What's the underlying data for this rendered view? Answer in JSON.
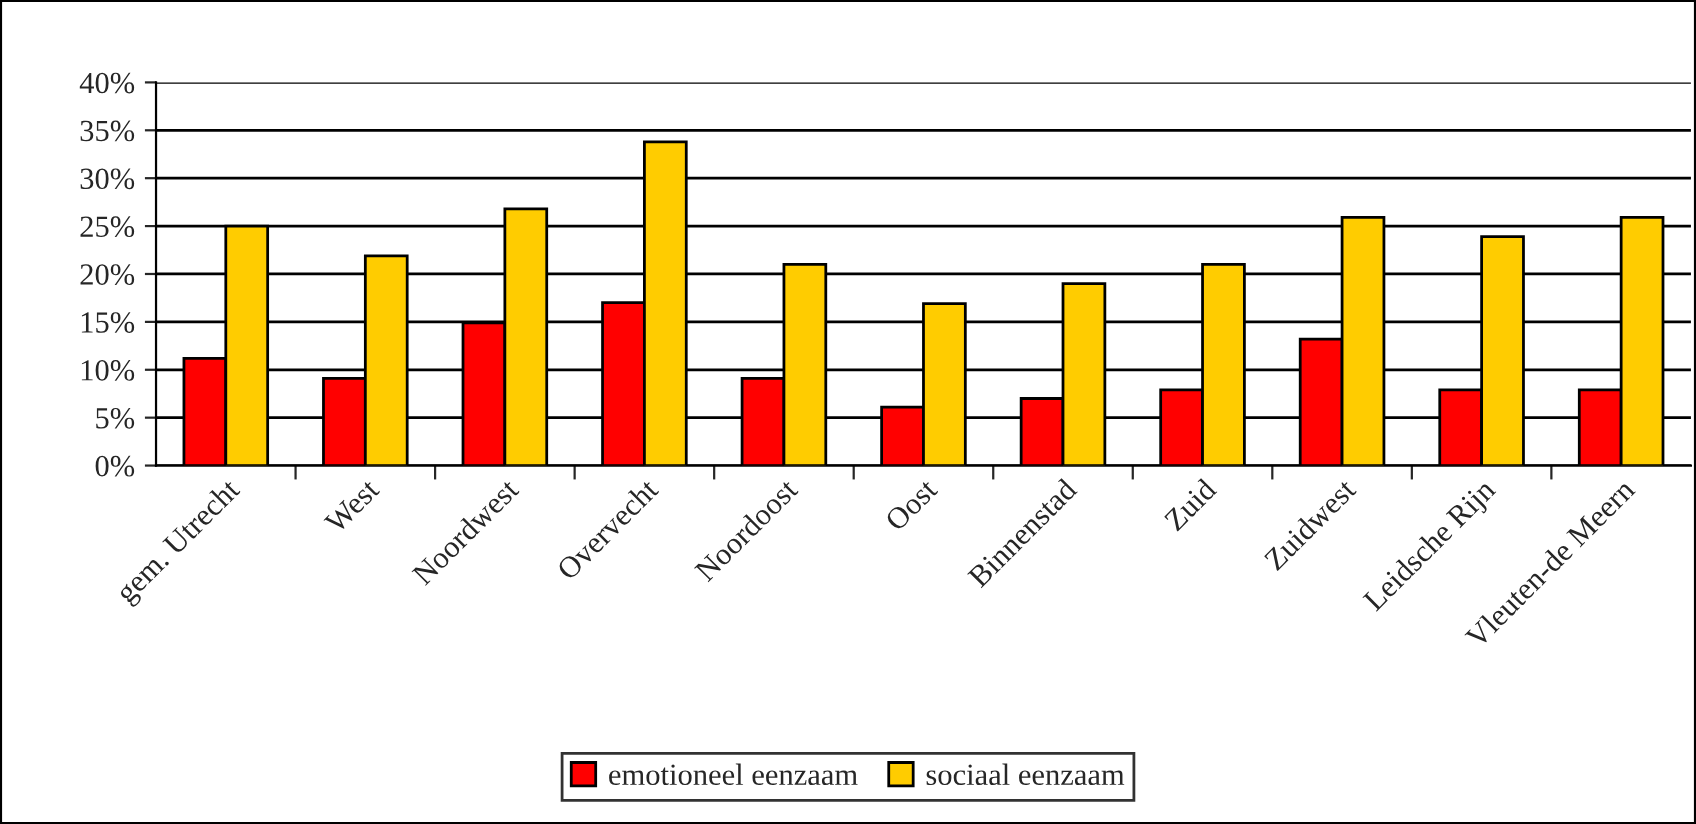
{
  "chart_data": {
    "type": "bar",
    "categories": [
      "gem. Utrecht",
      "West",
      "Noordwest",
      "Overvecht",
      "Noordoost",
      "Oost",
      "Binnenstad",
      "Zuid",
      "Zuidwest",
      "Leidsche Rijn",
      "Vleuten-de Meern"
    ],
    "series": [
      {
        "name": "emotioneel eenzaam",
        "color": "#ff0000",
        "values": [
          11.2,
          9.1,
          14.9,
          17,
          9.1,
          6.1,
          7,
          7.9,
          13.2,
          7.9,
          7.9
        ]
      },
      {
        "name": "sociaal eenzaam",
        "color": "#ffcc00",
        "values": [
          25,
          21.9,
          26.8,
          33.8,
          21,
          16.9,
          19,
          21,
          25.9,
          23.9,
          25.9
        ]
      }
    ],
    "ylim": [
      0,
      40
    ],
    "yticks": [
      {
        "value": 0,
        "label": "0%"
      },
      {
        "value": 5,
        "label": "5%"
      },
      {
        "value": 10,
        "label": "10%"
      },
      {
        "value": 15,
        "label": "15%"
      },
      {
        "value": 20,
        "label": "20%"
      },
      {
        "value": 25,
        "label": "25%"
      },
      {
        "value": 30,
        "label": "30%"
      },
      {
        "value": 35,
        "label": "35%"
      },
      {
        "value": 40,
        "label": "40%"
      }
    ],
    "grid": "y",
    "legend": "bottom"
  }
}
